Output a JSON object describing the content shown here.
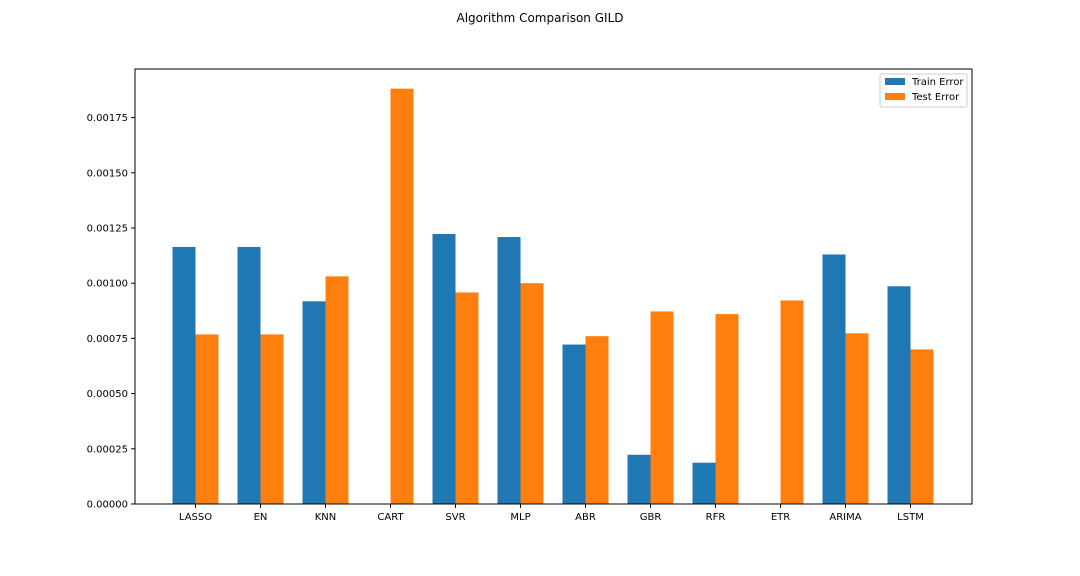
{
  "chart_data": {
    "type": "bar",
    "title": "Algorithm Comparison GILD",
    "xlabel": "",
    "ylabel": "",
    "categories": [
      "LASSO",
      "EN",
      "KNN",
      "CART",
      "SVR",
      "MLP",
      "ABR",
      "GBR",
      "RFR",
      "ETR",
      "ARIMA",
      "LSTM"
    ],
    "series": [
      {
        "name": "Train Error",
        "color": "#1f77b4",
        "values": [
          0.001164,
          0.001164,
          0.000918,
          0.0,
          0.001223,
          0.001209,
          0.000722,
          0.000223,
          0.000187,
          0.0,
          0.00113,
          0.000986
        ]
      },
      {
        "name": "Test Error",
        "color": "#ff7f0e",
        "values": [
          0.000768,
          0.000768,
          0.001031,
          0.001881,
          0.000958,
          0.001,
          0.00076,
          0.000872,
          0.00086,
          0.000922,
          0.000773,
          0.0007
        ]
      }
    ],
    "ylim": [
      0,
      0.00197
    ],
    "yticks": [
      "0.00000",
      "0.00025",
      "0.00050",
      "0.00075",
      "0.00100",
      "0.00125",
      "0.00150",
      "0.00175"
    ],
    "ytick_values": [
      0,
      0.00025,
      0.0005,
      0.00075,
      0.001,
      0.00125,
      0.0015,
      0.00175
    ],
    "grid": false,
    "legend_position": "top-right"
  }
}
